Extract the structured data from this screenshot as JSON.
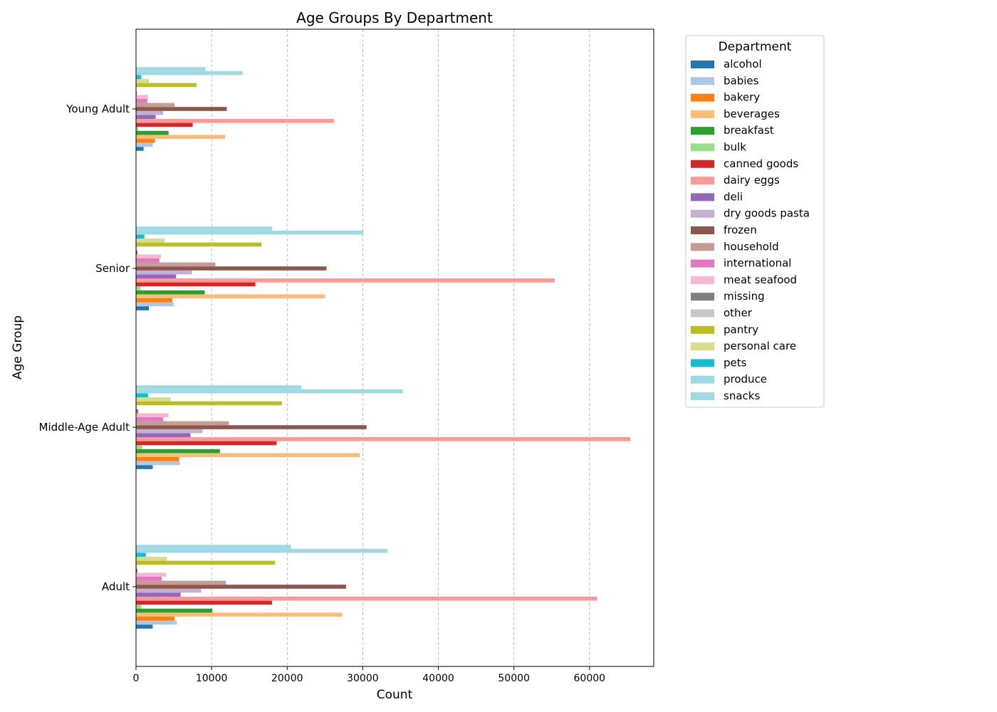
{
  "chart_data": {
    "type": "bar",
    "orientation": "horizontal",
    "title": "Age Groups By Department",
    "xlabel": "Count",
    "ylabel": "Age Group",
    "xlim": [
      0,
      68500
    ],
    "xticks": [
      0,
      10000,
      20000,
      30000,
      40000,
      50000,
      60000
    ],
    "grid": "x-dashed",
    "legend_title": "Department",
    "legend_position": "outside-right-top",
    "categories": [
      "Adult",
      "Middle-Age Adult",
      "Senior",
      "Young Adult"
    ],
    "series": [
      {
        "name": "alcohol",
        "color": "#1f77b4",
        "values": [
          2200,
          2200,
          1700,
          1000
        ]
      },
      {
        "name": "babies",
        "color": "#aec7e8",
        "values": [
          5400,
          5800,
          5000,
          2200
        ]
      },
      {
        "name": "bakery",
        "color": "#ff7f0e",
        "values": [
          5100,
          5700,
          4800,
          2500
        ]
      },
      {
        "name": "beverages",
        "color": "#ffbb78",
        "values": [
          27300,
          29600,
          25000,
          11800
        ]
      },
      {
        "name": "breakfast",
        "color": "#2ca02c",
        "values": [
          10100,
          11100,
          9100,
          4300
        ]
      },
      {
        "name": "bulk",
        "color": "#98df8a",
        "values": [
          700,
          800,
          600,
          300
        ]
      },
      {
        "name": "canned goods",
        "color": "#d62728",
        "values": [
          18000,
          18600,
          15800,
          7500
        ]
      },
      {
        "name": "dairy eggs",
        "color": "#ff9896",
        "values": [
          61000,
          65400,
          55400,
          26200
        ]
      },
      {
        "name": "deli",
        "color": "#9467bd",
        "values": [
          5900,
          7200,
          5300,
          2600
        ]
      },
      {
        "name": "dry goods pasta",
        "color": "#c5b0d5",
        "values": [
          8600,
          8800,
          7400,
          3600
        ]
      },
      {
        "name": "frozen",
        "color": "#8c564b",
        "values": [
          27800,
          30500,
          25200,
          12000
        ]
      },
      {
        "name": "household",
        "color": "#c49c94",
        "values": [
          11900,
          12300,
          10500,
          5100
        ]
      },
      {
        "name": "international",
        "color": "#e377c2",
        "values": [
          3400,
          3600,
          3100,
          1500
        ]
      },
      {
        "name": "meat seafood",
        "color": "#f7b6d2",
        "values": [
          4000,
          4300,
          3300,
          1600
        ]
      },
      {
        "name": "missing",
        "color": "#7f7f7f",
        "values": [
          200,
          300,
          200,
          100
        ]
      },
      {
        "name": "other",
        "color": "#c7c7c7",
        "values": [
          100,
          100,
          100,
          50
        ]
      },
      {
        "name": "pantry",
        "color": "#bcbd22",
        "values": [
          18400,
          19300,
          16600,
          8000
        ]
      },
      {
        "name": "personal care",
        "color": "#dbdb8d",
        "values": [
          4100,
          4600,
          3800,
          1700
        ]
      },
      {
        "name": "pets",
        "color": "#17becf",
        "values": [
          1300,
          1600,
          1100,
          700
        ]
      },
      {
        "name": "produce",
        "color": "#9edae5",
        "values": [
          33300,
          35300,
          30100,
          14100
        ]
      },
      {
        "name": "snacks",
        "color": "#9edae5",
        "values": [
          20500,
          21900,
          18000,
          9200
        ]
      }
    ]
  }
}
